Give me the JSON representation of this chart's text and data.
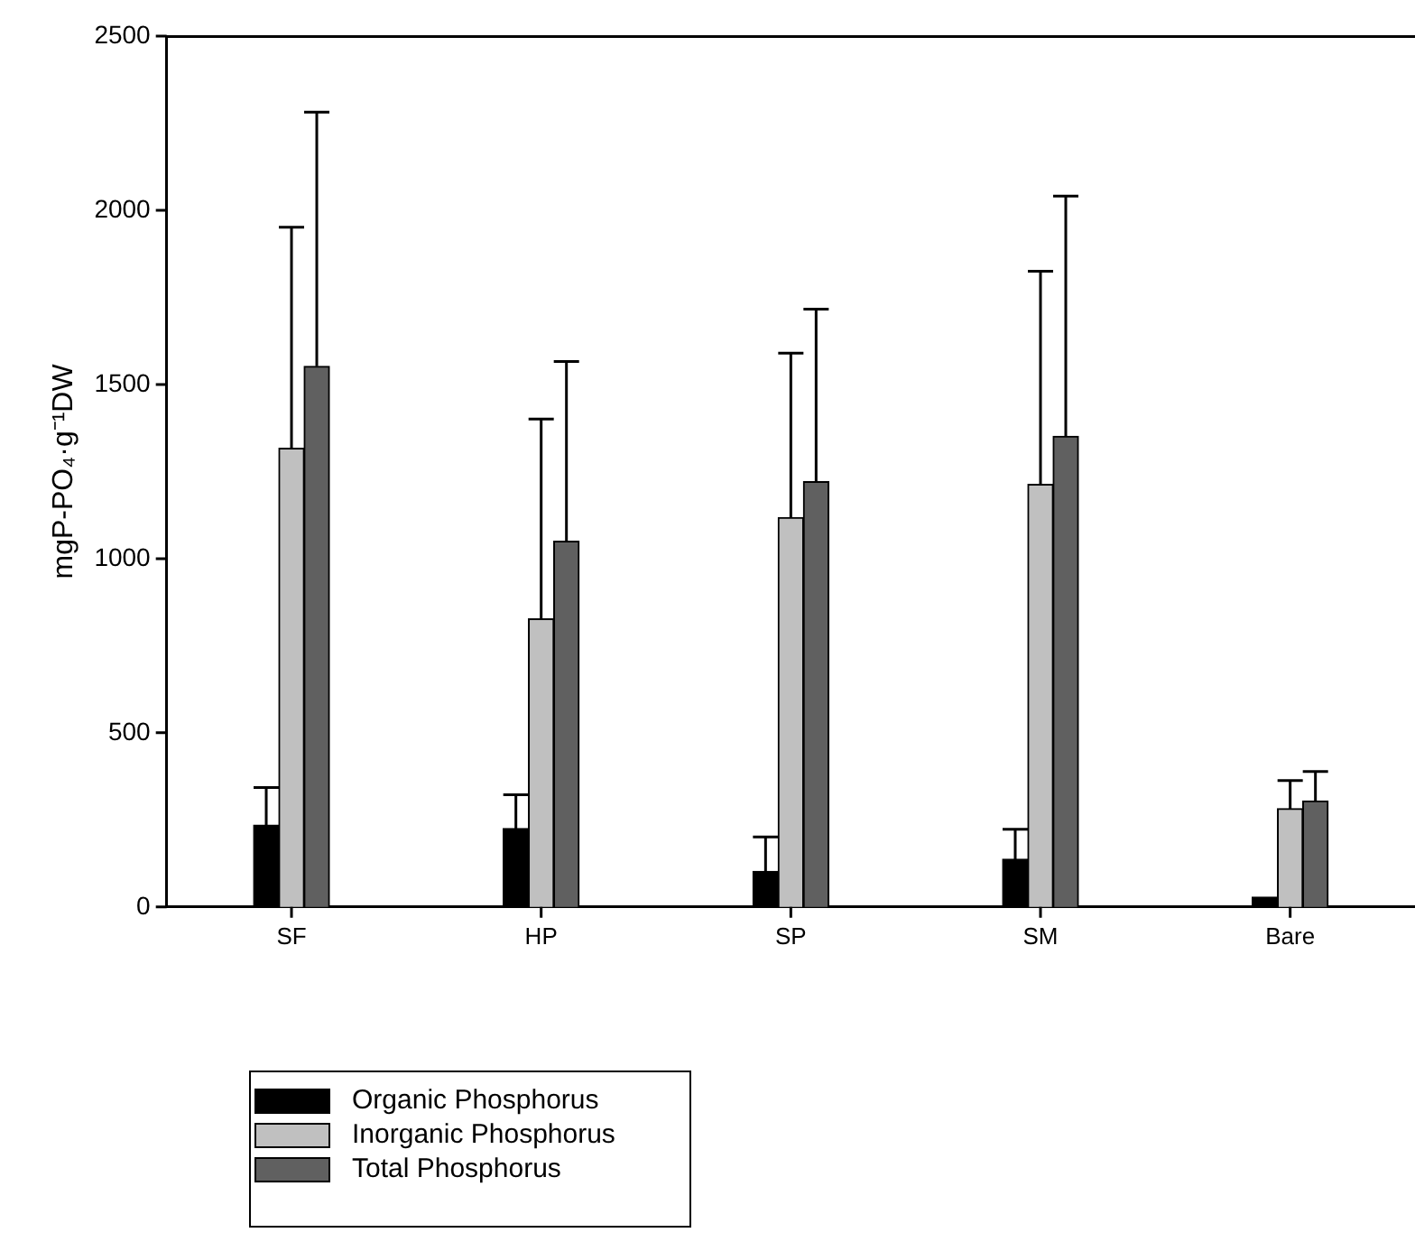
{
  "chart_data": {
    "type": "bar",
    "ylabel": "mgP-PO₄·g⁻¹DW",
    "categories": [
      "SF",
      "HP",
      "SP",
      "SM",
      "Bare"
    ],
    "series": [
      {
        "name": "Organic Phosphorus",
        "color": "#000000",
        "values": [
          235,
          225,
          102,
          137,
          28
        ],
        "errors": [
          [
            235,
            343
          ],
          [
            225,
            322
          ],
          [
            102,
            201
          ],
          [
            137,
            223
          ],
          null
        ]
      },
      {
        "name": "Inorganic Phosphorus",
        "color": "#c0c0c0",
        "values": [
          1317,
          827,
          1118,
          1213,
          282
        ],
        "errors": [
          [
            1317,
            1951
          ],
          [
            827,
            1401
          ],
          [
            1118,
            1590
          ],
          [
            1213,
            1825
          ],
          [
            282,
            363
          ]
        ]
      },
      {
        "name": "Total Phosphorus",
        "color": "#606060",
        "values": [
          1552,
          1050,
          1221,
          1351,
          304
        ],
        "errors": [
          [
            1552,
            2282
          ],
          [
            1050,
            1566
          ],
          [
            1221,
            1716
          ],
          [
            1351,
            2041
          ],
          [
            304,
            389
          ]
        ]
      }
    ],
    "ylim": [
      0,
      2500
    ],
    "yticks": [
      0,
      500,
      1000,
      1500,
      2000,
      2500
    ],
    "grid": false,
    "legend": "bottom left"
  }
}
